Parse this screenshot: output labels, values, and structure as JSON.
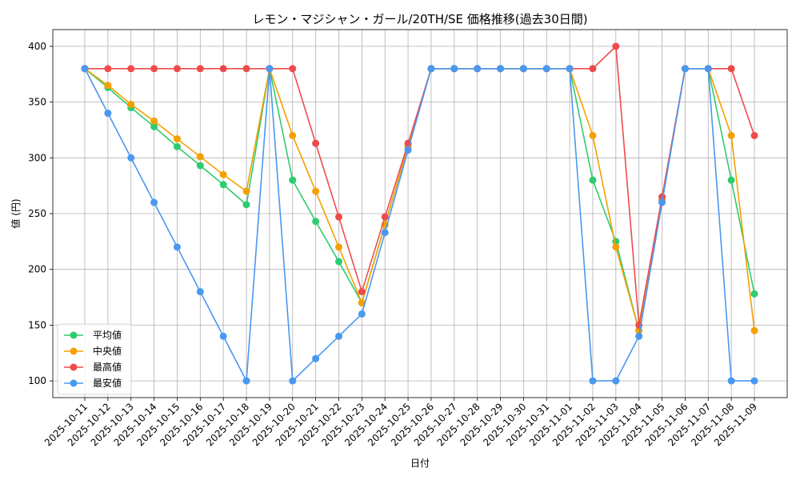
{
  "chart_data": {
    "type": "line",
    "title": "レモン・マジシャン・ガール/20TH/SE 価格推移(過去30日間)",
    "xlabel": "日付",
    "ylabel": "値 (円)",
    "ylim": [
      85,
      415
    ],
    "yticks": [
      100,
      150,
      200,
      250,
      300,
      350,
      400
    ],
    "grid": true,
    "legend_position": "lower-left",
    "categories": [
      "2025-10-11",
      "2025-10-12",
      "2025-10-13",
      "2025-10-14",
      "2025-10-15",
      "2025-10-16",
      "2025-10-17",
      "2025-10-18",
      "2025-10-19",
      "2025-10-20",
      "2025-10-21",
      "2025-10-22",
      "2025-10-23",
      "2025-10-24",
      "2025-10-25",
      "2025-10-26",
      "2025-10-27",
      "2025-10-28",
      "2025-10-29",
      "2025-10-30",
      "2025-10-31",
      "2025-11-01",
      "2025-11-02",
      "2025-11-03",
      "2025-11-04",
      "2025-11-05",
      "2025-11-06",
      "2025-11-07",
      "2025-11-08",
      "2025-11-09"
    ],
    "series": [
      {
        "name": "平均値",
        "color": "#2ecc71",
        "values": [
          380,
          363,
          345,
          328,
          310,
          293,
          276,
          258,
          380,
          280,
          243,
          207,
          170,
          240,
          310,
          380,
          380,
          380,
          380,
          380,
          380,
          380,
          280,
          225,
          145,
          262,
          380,
          380,
          280,
          178
        ]
      },
      {
        "name": "中央値",
        "color": "#f5a000",
        "values": [
          380,
          365,
          348,
          333,
          317,
          301,
          285,
          270,
          380,
          320,
          270,
          220,
          170,
          240,
          310,
          380,
          380,
          380,
          380,
          380,
          380,
          380,
          320,
          220,
          145,
          262,
          380,
          380,
          320,
          145
        ]
      },
      {
        "name": "最高値",
        "color": "#f04b4b",
        "values": [
          380,
          380,
          380,
          380,
          380,
          380,
          380,
          380,
          380,
          380,
          313,
          247,
          180,
          247,
          313,
          380,
          380,
          380,
          380,
          380,
          380,
          380,
          380,
          400,
          150,
          265,
          380,
          380,
          380,
          320
        ]
      },
      {
        "name": "最安値",
        "color": "#4a98f0",
        "values": [
          380,
          340,
          300,
          260,
          220,
          180,
          140,
          100,
          380,
          100,
          120,
          140,
          160,
          233,
          307,
          380,
          380,
          380,
          380,
          380,
          380,
          380,
          100,
          100,
          140,
          260,
          380,
          380,
          100,
          100
        ]
      }
    ]
  }
}
